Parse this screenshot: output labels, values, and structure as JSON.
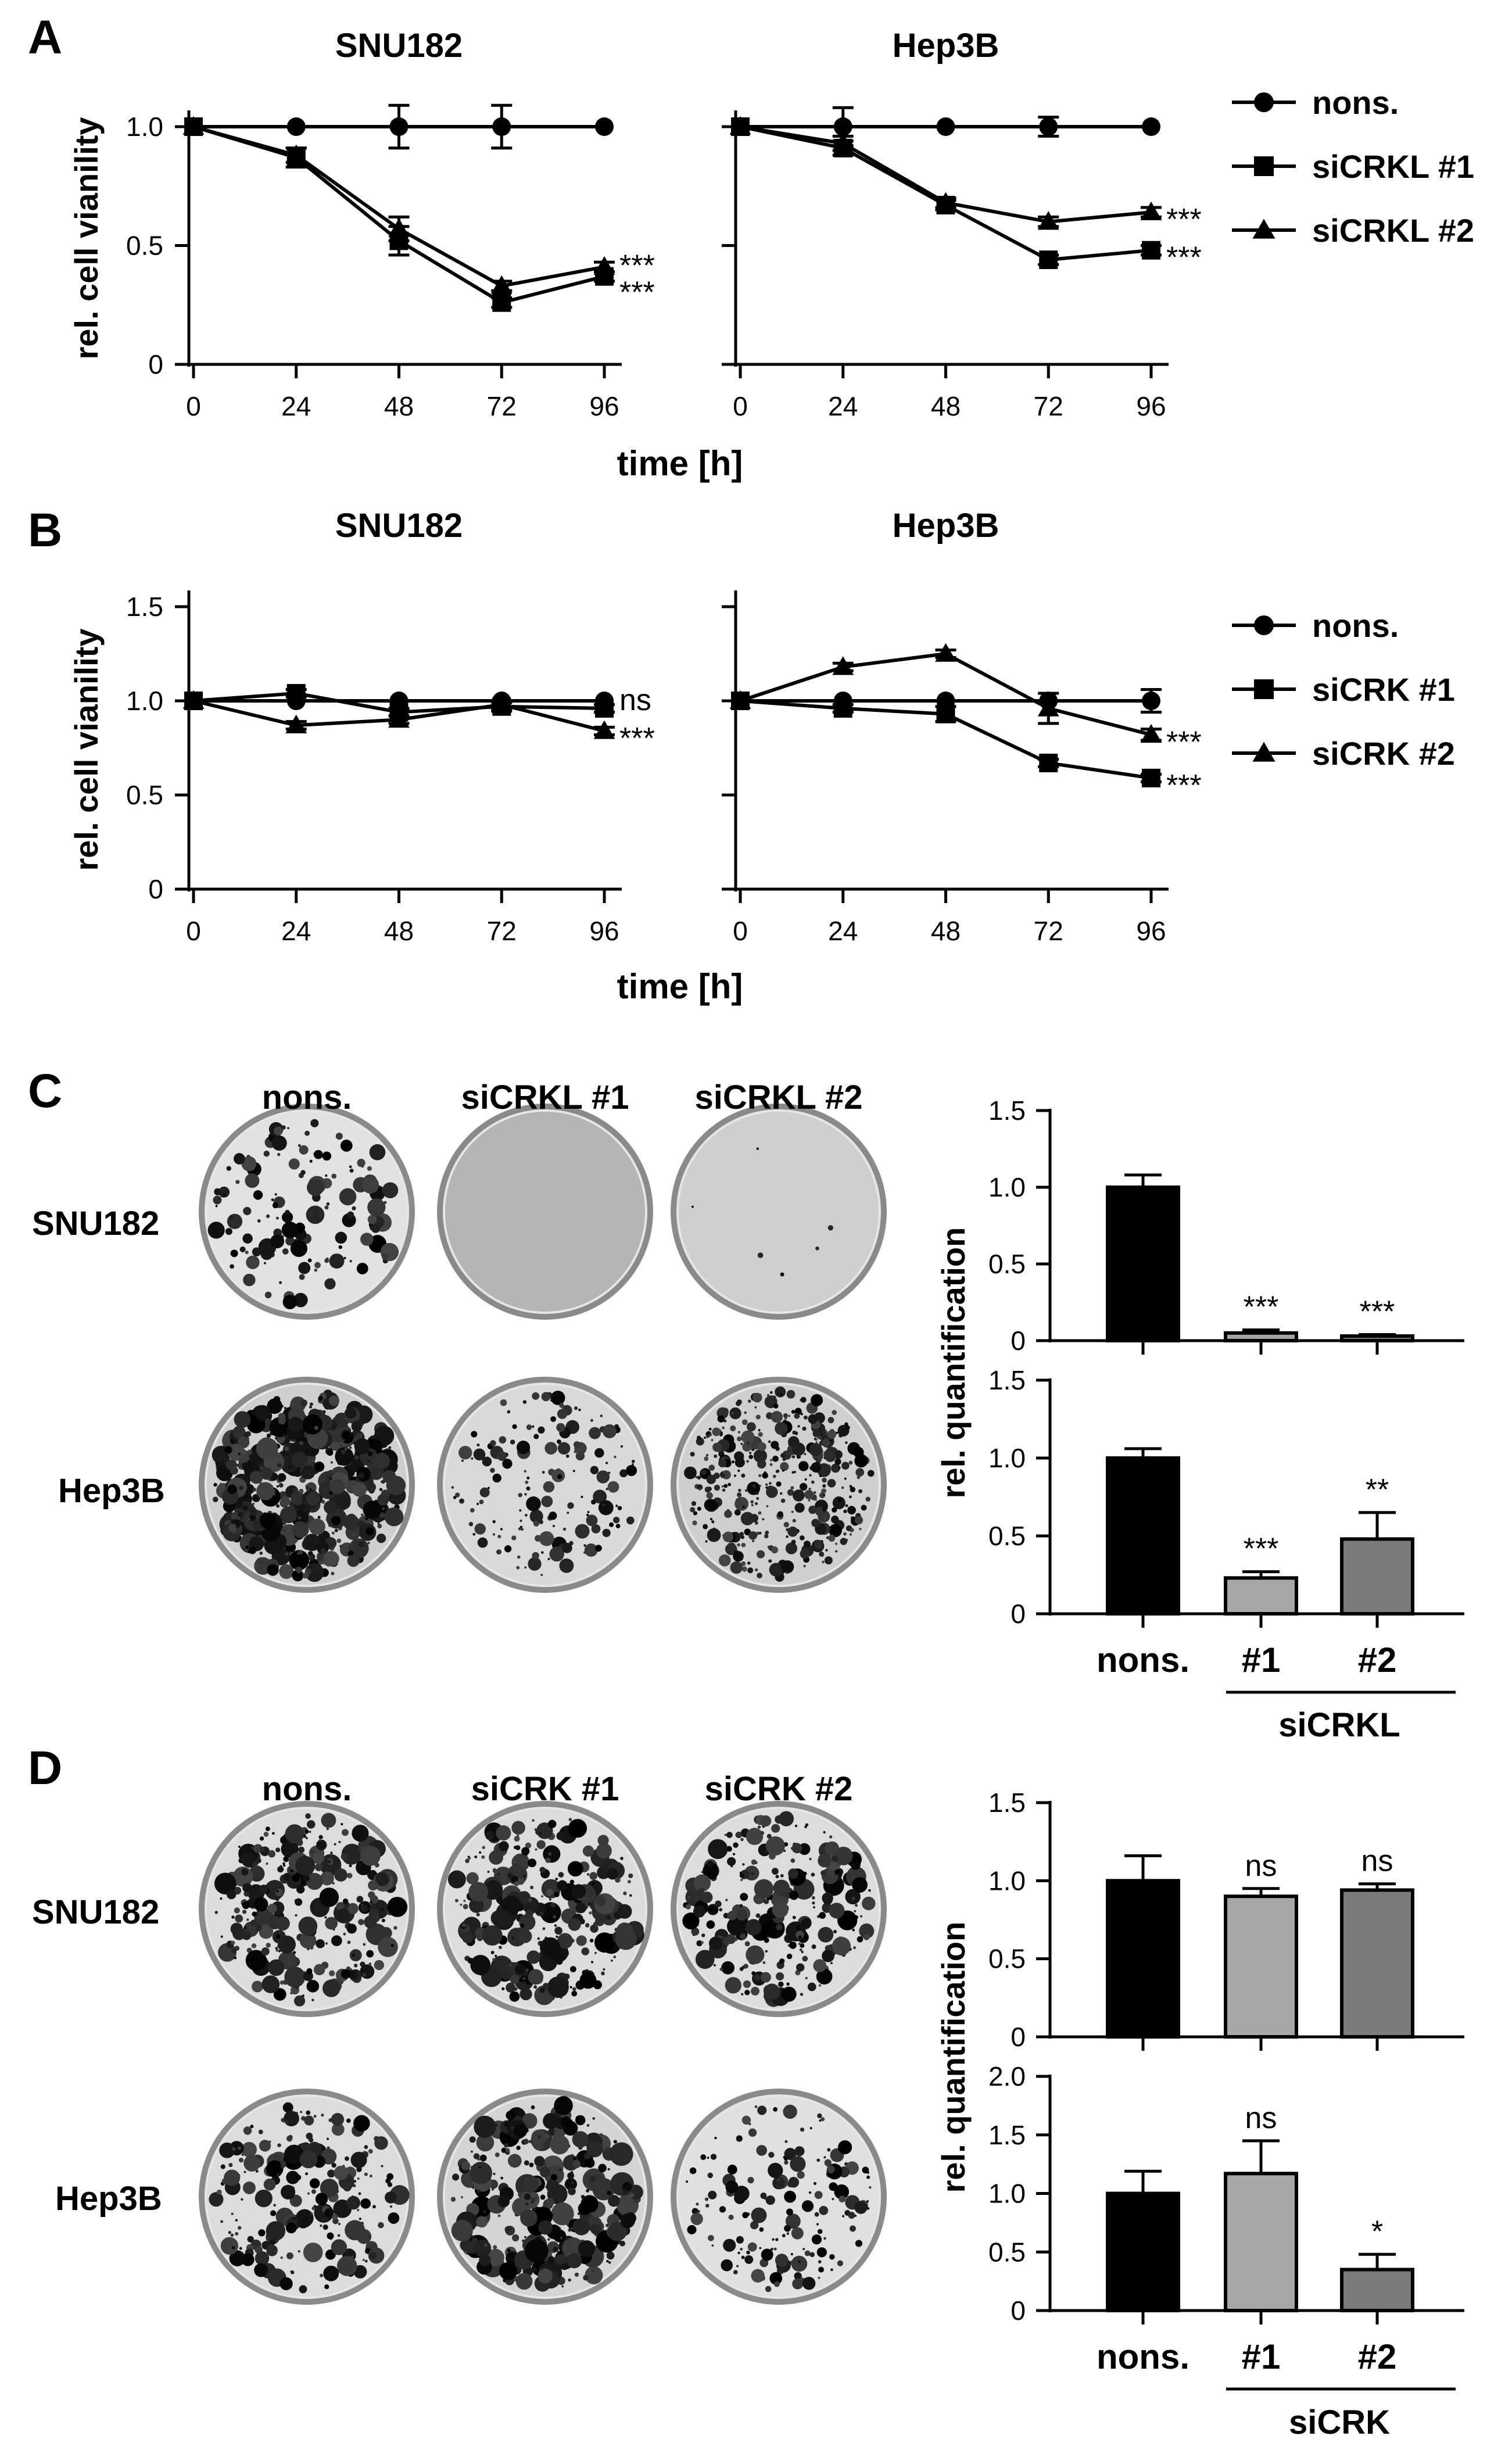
{
  "panel_letters": [
    "A",
    "B",
    "C",
    "D"
  ],
  "line_shared": {
    "xlabel": "time [h]",
    "ylabel": "rel. cell vianility"
  },
  "colony_row_labels": [
    "SNU182",
    "Hep3B"
  ],
  "colony_col_labels": {
    "C": [
      "nons.",
      "siCRKL #1",
      "siCRKL #2"
    ],
    "D": [
      "nons.",
      "siCRK #1",
      "siCRK #2"
    ]
  },
  "bar_shared": {
    "ylabel": "rel. quantification"
  },
  "bar_groups": {
    "C": {
      "ticklabels": [
        "nons.",
        "#1",
        "#2"
      ],
      "group_label": "siCRKL"
    },
    "D": {
      "ticklabels": [
        "nons.",
        "#1",
        "#2"
      ],
      "group_label": "siCRK"
    }
  },
  "colors": {
    "nons": "#000000",
    "si1": "#a6a6a6",
    "si2": "#7b7b7b"
  },
  "chart_data": [
    {
      "id": "A-SNU182",
      "panel": "A",
      "type": "line",
      "title": "SNU182",
      "x": [
        0,
        24,
        48,
        72,
        96
      ],
      "xticks": [
        "0",
        "24",
        "48",
        "72",
        "96"
      ],
      "ylim": [
        0,
        1.0
      ],
      "yticks": [
        "0",
        "0.5",
        "1.0"
      ],
      "show_ytick_labels": true,
      "series": [
        {
          "name": "nons.",
          "marker": "circle",
          "values": [
            1.0,
            1.0,
            1.0,
            1.0,
            1.0
          ],
          "errors": [
            0,
            0,
            0.09,
            0.09,
            0
          ]
        },
        {
          "name": "siCRKL #1",
          "marker": "square",
          "values": [
            1.0,
            0.87,
            0.52,
            0.26,
            0.37
          ],
          "errors": [
            0,
            0.04,
            0.06,
            0.02,
            0.02
          ]
        },
        {
          "name": "siCRKL #2",
          "marker": "triangle",
          "values": [
            1.0,
            0.88,
            0.57,
            0.33,
            0.41
          ],
          "errors": [
            0,
            0.03,
            0.05,
            0.02,
            0.02
          ]
        }
      ],
      "annotations": [
        "***",
        "***"
      ]
    },
    {
      "id": "A-Hep3B",
      "panel": "A",
      "type": "line",
      "title": "Hep3B",
      "x": [
        0,
        24,
        48,
        72,
        96
      ],
      "xticks": [
        "0",
        "24",
        "48",
        "72",
        "96"
      ],
      "ylim": [
        0,
        1.0
      ],
      "yticks": [
        "0",
        "0.5",
        "1.0"
      ],
      "show_ytick_labels": false,
      "series": [
        {
          "name": "nons.",
          "marker": "circle",
          "values": [
            1.0,
            1.0,
            1.0,
            1.0,
            1.0
          ],
          "errors": [
            0,
            0.08,
            0,
            0.04,
            0
          ]
        },
        {
          "name": "siCRKL #1",
          "marker": "square",
          "values": [
            1.0,
            0.91,
            0.67,
            0.44,
            0.48
          ],
          "errors": [
            0,
            0.03,
            0.02,
            0.02,
            0.02
          ]
        },
        {
          "name": "siCRKL #2",
          "marker": "triangle",
          "values": [
            1.0,
            0.93,
            0.68,
            0.6,
            0.64
          ],
          "errors": [
            0,
            0.03,
            0.02,
            0.02,
            0.02
          ]
        }
      ],
      "annotations": [
        "***",
        "***"
      ]
    },
    {
      "id": "B-SNU182",
      "panel": "B",
      "type": "line",
      "title": "SNU182",
      "x": [
        0,
        24,
        48,
        72,
        96
      ],
      "xticks": [
        "0",
        "24",
        "48",
        "72",
        "96"
      ],
      "ylim": [
        0,
        1.5
      ],
      "yticks": [
        "0",
        "0.5",
        "1.0",
        "1.5"
      ],
      "show_ytick_labels": true,
      "series": [
        {
          "name": "nons.",
          "marker": "circle",
          "values": [
            1.0,
            1.0,
            1.0,
            1.0,
            1.0
          ],
          "errors": [
            0,
            0,
            0,
            0,
            0
          ]
        },
        {
          "name": "siCRK #1",
          "marker": "square",
          "values": [
            1.0,
            1.04,
            0.94,
            0.97,
            0.96
          ],
          "errors": [
            0,
            0.02,
            0.02,
            0.02,
            0.02
          ]
        },
        {
          "name": "siCRK #2",
          "marker": "triangle",
          "values": [
            1.0,
            0.87,
            0.9,
            0.98,
            0.84
          ],
          "errors": [
            0,
            0.02,
            0.02,
            0.02,
            0.02
          ]
        }
      ],
      "annotations": [
        "ns",
        "***"
      ]
    },
    {
      "id": "B-Hep3B",
      "panel": "B",
      "type": "line",
      "title": "Hep3B",
      "x": [
        0,
        24,
        48,
        72,
        96
      ],
      "xticks": [
        "0",
        "24",
        "48",
        "72",
        "96"
      ],
      "ylim": [
        0,
        1.5
      ],
      "yticks": [
        "0",
        "0.5",
        "1.0",
        "1.5"
      ],
      "show_ytick_labels": false,
      "series": [
        {
          "name": "nons.",
          "marker": "circle",
          "values": [
            1.0,
            1.0,
            1.0,
            1.0,
            1.0
          ],
          "errors": [
            0,
            0,
            0,
            0,
            0.06
          ]
        },
        {
          "name": "siCRK #1",
          "marker": "square",
          "values": [
            1.0,
            0.96,
            0.93,
            0.67,
            0.59
          ],
          "errors": [
            0,
            0.02,
            0.04,
            0.02,
            0.02
          ]
        },
        {
          "name": "siCRK #2",
          "marker": "triangle",
          "values": [
            1.0,
            1.18,
            1.25,
            0.96,
            0.82
          ],
          "errors": [
            0,
            0.02,
            0.02,
            0.08,
            0.03
          ]
        }
      ],
      "annotations": [
        "***",
        "***"
      ]
    },
    {
      "id": "C-SNU182",
      "panel": "C",
      "type": "bar",
      "categories": [
        "nons.",
        "#1",
        "#2"
      ],
      "values": [
        1.0,
        0.05,
        0.03
      ],
      "errors": [
        0.08,
        0.02,
        0.01
      ],
      "ylim": [
        0,
        1.5
      ],
      "yticks": [
        "0",
        "0.5",
        "1.0",
        "1.5"
      ],
      "annotations": [
        "",
        "***",
        "***"
      ]
    },
    {
      "id": "C-Hep3B",
      "panel": "C",
      "type": "bar",
      "categories": [
        "nons.",
        "#1",
        "#2"
      ],
      "values": [
        1.0,
        0.23,
        0.48
      ],
      "errors": [
        0.06,
        0.04,
        0.17
      ],
      "ylim": [
        0,
        1.5
      ],
      "yticks": [
        "0",
        "0.5",
        "1.0",
        "1.5"
      ],
      "annotations": [
        "",
        "***",
        "**"
      ]
    },
    {
      "id": "D-SNU182",
      "panel": "D",
      "type": "bar",
      "categories": [
        "nons.",
        "#1",
        "#2"
      ],
      "values": [
        1.0,
        0.9,
        0.94
      ],
      "errors": [
        0.16,
        0.05,
        0.04
      ],
      "ylim": [
        0,
        1.5
      ],
      "yticks": [
        "0",
        "0.5",
        "1.0",
        "1.5"
      ],
      "annotations": [
        "",
        "ns",
        "ns"
      ]
    },
    {
      "id": "D-Hep3B",
      "panel": "D",
      "type": "bar",
      "categories": [
        "nons.",
        "#1",
        "#2"
      ],
      "values": [
        1.0,
        1.17,
        0.35
      ],
      "errors": [
        0.19,
        0.28,
        0.13
      ],
      "ylim": [
        0,
        2.0
      ],
      "yticks": [
        "0",
        "0.5",
        "1.0",
        "1.5",
        "2.0"
      ],
      "annotations": [
        "",
        "ns",
        "*"
      ]
    }
  ]
}
